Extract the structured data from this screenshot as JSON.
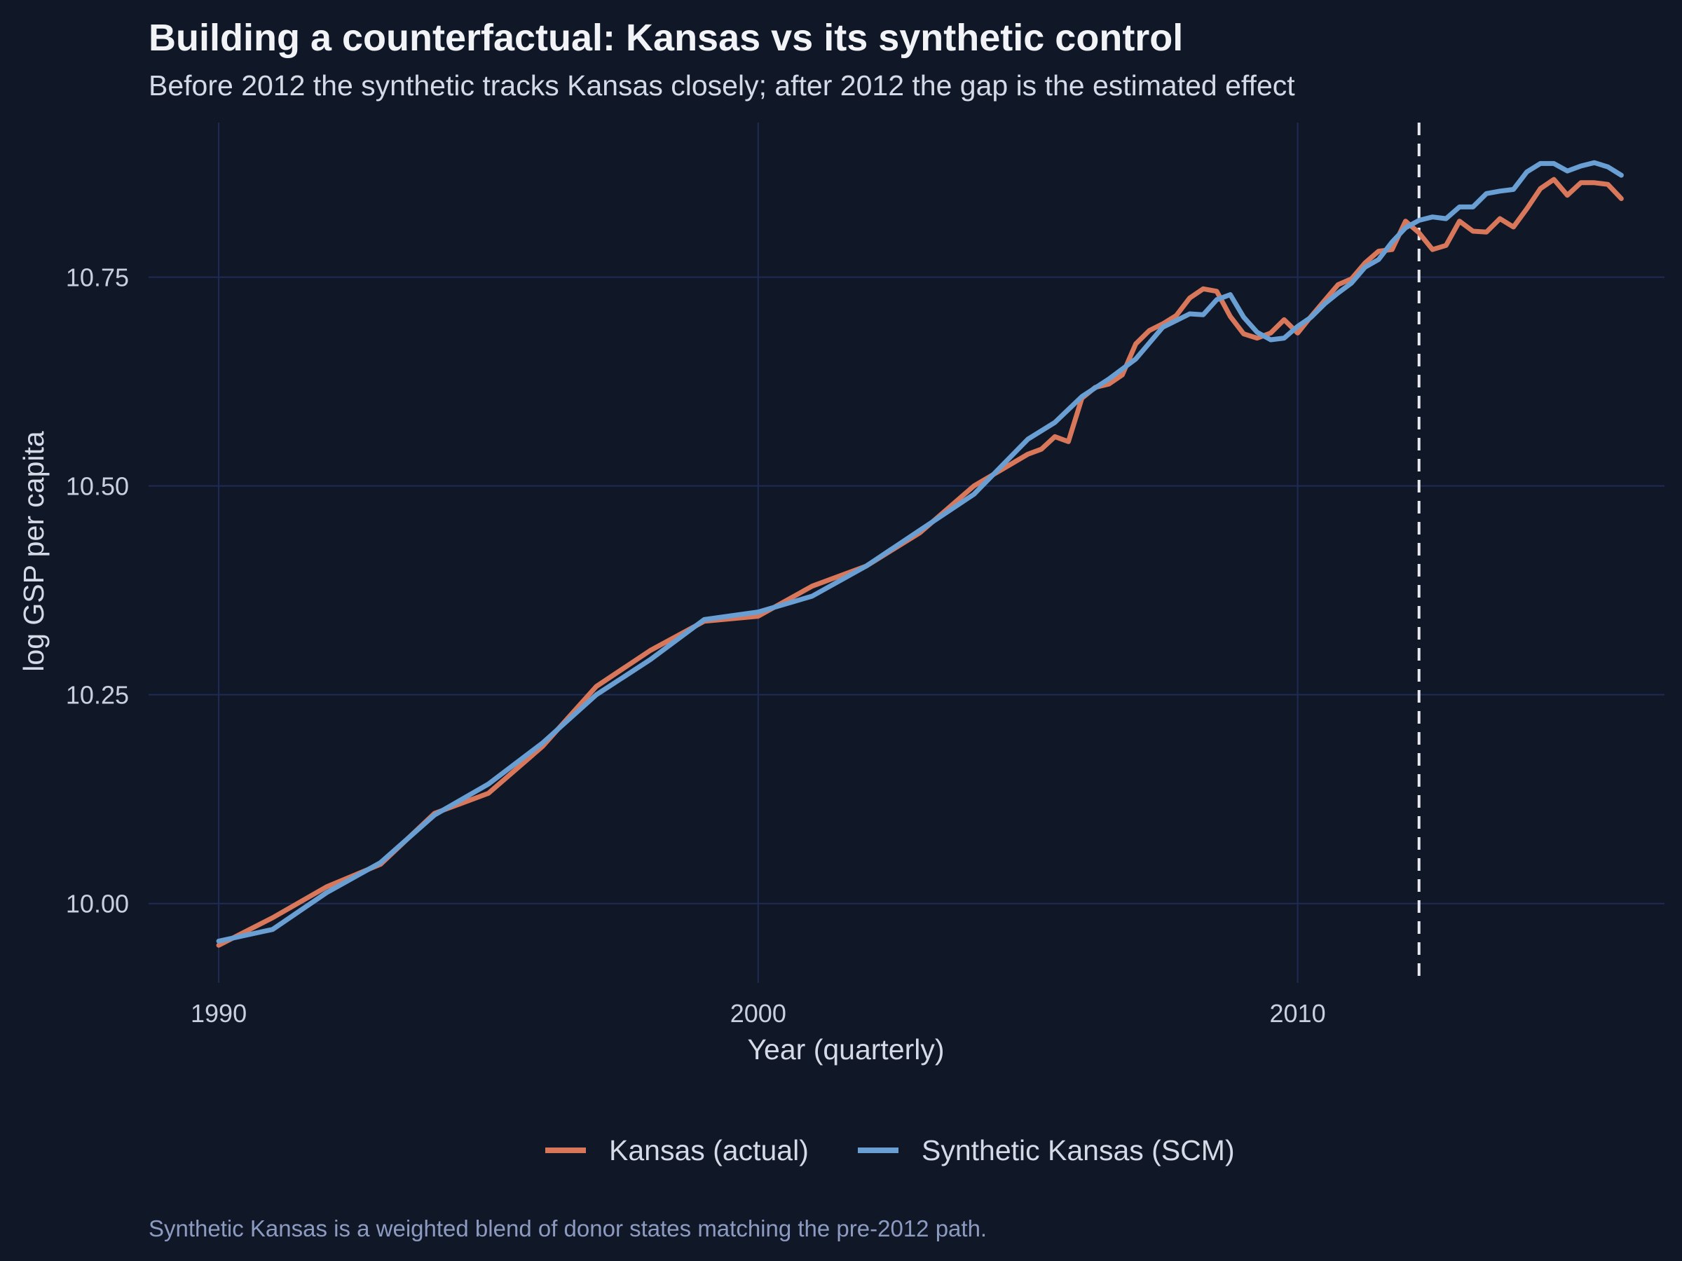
{
  "colors": {
    "background": "#101828",
    "grid": "#1f2b55",
    "kansas": "#d9775a",
    "synthetic": "#6a9fd4",
    "marker_line": "#e6e8ee"
  },
  "chart_data": {
    "type": "line",
    "title": "Building a counterfactual: Kansas vs its synthetic control",
    "subtitle": "Before 2012 the synthetic tracks Kansas closely; after 2012 the gap is the estimated effect",
    "xlabel": "Year (quarterly)",
    "ylabel": "log GSP per capita",
    "caption": "Synthetic Kansas is a weighted blend of donor states matching the pre-2012 path.",
    "xlim": [
      1988.7,
      2016.8
    ],
    "ylim": [
      9.905,
      10.935
    ],
    "x_ticks": [
      1990,
      2000,
      2010
    ],
    "y_ticks": [
      10.0,
      10.25,
      10.5,
      10.75
    ],
    "x_tick_labels": [
      "1990",
      "2000",
      "2010"
    ],
    "y_tick_labels": [
      "10.00",
      "10.25",
      "10.50",
      "10.75"
    ],
    "grid": true,
    "legend_position": "bottom",
    "treatment_year": 2012.25,
    "series": [
      {
        "name": "Kansas (actual)",
        "points": [
          [
            1990.0,
            9.95
          ],
          [
            1991.0,
            9.983
          ],
          [
            1992.0,
            10.02
          ],
          [
            1993.0,
            10.047
          ],
          [
            1994.0,
            10.108
          ],
          [
            1995.0,
            10.132
          ],
          [
            1996.0,
            10.188
          ],
          [
            1997.0,
            10.26
          ],
          [
            1998.0,
            10.303
          ],
          [
            1999.0,
            10.338
          ],
          [
            2000.0,
            10.344
          ],
          [
            2001.0,
            10.38
          ],
          [
            2002.0,
            10.404
          ],
          [
            2003.0,
            10.444
          ],
          [
            2004.0,
            10.5
          ],
          [
            2005.0,
            10.538
          ],
          [
            2005.25,
            10.544
          ],
          [
            2005.5,
            10.559
          ],
          [
            2005.75,
            10.553
          ],
          [
            2006.0,
            10.605
          ],
          [
            2006.25,
            10.618
          ],
          [
            2006.5,
            10.622
          ],
          [
            2006.75,
            10.633
          ],
          [
            2007.0,
            10.67
          ],
          [
            2007.25,
            10.686
          ],
          [
            2007.5,
            10.694
          ],
          [
            2007.75,
            10.704
          ],
          [
            2008.0,
            10.725
          ],
          [
            2008.25,
            10.736
          ],
          [
            2008.5,
            10.733
          ],
          [
            2008.75,
            10.703
          ],
          [
            2009.0,
            10.682
          ],
          [
            2009.25,
            10.677
          ],
          [
            2009.5,
            10.683
          ],
          [
            2009.75,
            10.699
          ],
          [
            2010.0,
            10.683
          ],
          [
            2010.25,
            10.703
          ],
          [
            2010.5,
            10.722
          ],
          [
            2010.75,
            10.741
          ],
          [
            2011.0,
            10.748
          ],
          [
            2011.25,
            10.767
          ],
          [
            2011.5,
            10.781
          ],
          [
            2011.75,
            10.783
          ],
          [
            2012.0,
            10.817
          ],
          [
            2012.25,
            10.803
          ],
          [
            2012.5,
            10.783
          ],
          [
            2012.75,
            10.788
          ],
          [
            2013.0,
            10.817
          ],
          [
            2013.25,
            10.805
          ],
          [
            2013.5,
            10.804
          ],
          [
            2013.75,
            10.82
          ],
          [
            2014.0,
            10.81
          ],
          [
            2014.25,
            10.832
          ],
          [
            2014.5,
            10.856
          ],
          [
            2014.75,
            10.867
          ],
          [
            2015.0,
            10.848
          ],
          [
            2015.25,
            10.863
          ],
          [
            2015.5,
            10.863
          ],
          [
            2015.75,
            10.861
          ],
          [
            2016.0,
            10.844
          ]
        ]
      },
      {
        "name": "Synthetic Kansas (SCM)",
        "points": [
          [
            1990.0,
            9.955
          ],
          [
            1990.5,
            9.962
          ],
          [
            1991.0,
            9.969
          ],
          [
            1992.0,
            10.013
          ],
          [
            1993.0,
            10.049
          ],
          [
            1994.0,
            10.106
          ],
          [
            1995.0,
            10.143
          ],
          [
            1996.0,
            10.192
          ],
          [
            1997.0,
            10.25
          ],
          [
            1998.0,
            10.292
          ],
          [
            1999.0,
            10.34
          ],
          [
            2000.0,
            10.349
          ],
          [
            2001.0,
            10.368
          ],
          [
            2002.0,
            10.404
          ],
          [
            2003.0,
            10.447
          ],
          [
            2004.0,
            10.49
          ],
          [
            2004.5,
            10.523
          ],
          [
            2005.0,
            10.556
          ],
          [
            2005.5,
            10.576
          ],
          [
            2006.0,
            10.607
          ],
          [
            2006.5,
            10.628
          ],
          [
            2007.0,
            10.652
          ],
          [
            2007.5,
            10.69
          ],
          [
            2008.0,
            10.706
          ],
          [
            2008.25,
            10.705
          ],
          [
            2008.5,
            10.723
          ],
          [
            2008.75,
            10.729
          ],
          [
            2009.0,
            10.702
          ],
          [
            2009.25,
            10.684
          ],
          [
            2009.5,
            10.675
          ],
          [
            2009.75,
            10.677
          ],
          [
            2010.0,
            10.691
          ],
          [
            2010.25,
            10.702
          ],
          [
            2010.5,
            10.718
          ],
          [
            2010.75,
            10.731
          ],
          [
            2011.0,
            10.743
          ],
          [
            2011.25,
            10.762
          ],
          [
            2011.5,
            10.771
          ],
          [
            2011.75,
            10.792
          ],
          [
            2012.0,
            10.809
          ],
          [
            2012.25,
            10.818
          ],
          [
            2012.5,
            10.822
          ],
          [
            2012.75,
            10.82
          ],
          [
            2013.0,
            10.834
          ],
          [
            2013.25,
            10.834
          ],
          [
            2013.5,
            10.85
          ],
          [
            2013.75,
            10.853
          ],
          [
            2014.0,
            10.855
          ],
          [
            2014.25,
            10.876
          ],
          [
            2014.5,
            10.886
          ],
          [
            2014.75,
            10.886
          ],
          [
            2015.0,
            10.877
          ],
          [
            2015.25,
            10.883
          ],
          [
            2015.5,
            10.887
          ],
          [
            2015.75,
            10.882
          ],
          [
            2016.0,
            10.872
          ]
        ]
      }
    ]
  }
}
